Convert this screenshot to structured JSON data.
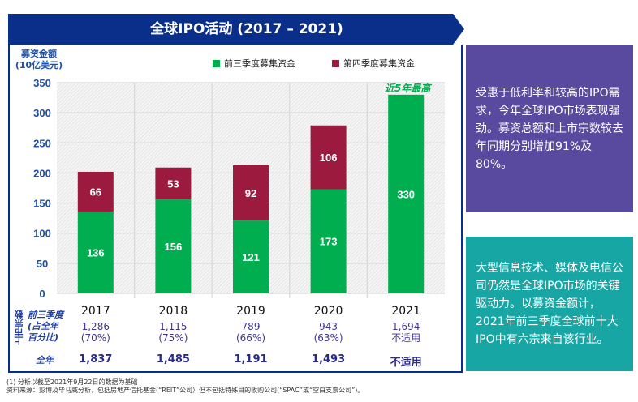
{
  "header": {
    "title": "全球IPO活动 (2017 – 2021)"
  },
  "chart_data": {
    "type": "bar",
    "stacked": true,
    "title": "全球IPO活动 (2017 – 2021)",
    "ylabel": "募资金额 (10亿美元)",
    "xlabel": "",
    "ylim": [
      0,
      350
    ],
    "yticks": [
      0,
      50,
      100,
      150,
      200,
      250,
      300,
      350
    ],
    "grid": true,
    "legend_position": "top",
    "categories": [
      "2017",
      "2018",
      "2019",
      "2020",
      "2021"
    ],
    "series": [
      {
        "name": "前三季度募集资金",
        "color": "#00ad4f",
        "values": [
          136,
          156,
          121,
          173,
          330
        ]
      },
      {
        "name": "第四季度募集资金",
        "color": "#9b1a3e",
        "values": [
          66,
          53,
          92,
          106,
          null
        ]
      }
    ],
    "annotations": [
      {
        "category": "2021",
        "text": "近5年最高",
        "color": "#00ad4f"
      }
    ]
  },
  "table": {
    "group_label": "上市宗数",
    "row1_label": "前三季度 (占全年百分比)",
    "row1_label_lines": [
      "前三季度",
      "(占全年",
      "百分比)"
    ],
    "row2_label": "全年",
    "years": [
      "2017",
      "2018",
      "2019",
      "2020",
      "2021"
    ],
    "ipo_counts": [
      {
        "count": "1,286",
        "pct": "(70%)",
        "full": "1,837"
      },
      {
        "count": "1,115",
        "pct": "(75%)",
        "full": "1,485"
      },
      {
        "count": "789",
        "pct": "(66%)",
        "full": "1,191"
      },
      {
        "count": "943",
        "pct": "(63%)",
        "full": "1,493"
      },
      {
        "count": "1,694",
        "pct": "不适用",
        "full": "不适用"
      }
    ]
  },
  "panels": [
    {
      "text": "受惠于低利率和较高的IPO需求，今年全球IPO市场表现强劲。募资总额和上市宗数较去年同期分别增加91%及80%。",
      "color": "#5a4a9f"
    },
    {
      "text": "大型信息技术、媒体及电信公司仍然是全球IPO市场的关键驱动力。以募资金额计，2021年前三季度全球前十大IPO中有六宗来自该行业。",
      "color": "#17a6a4"
    }
  ],
  "footnotes": [
    "(1) 分析以截至2021年9月22日的数据为基础",
    "资料来源：彭博及毕马威分析，包括房地产信托基金(“REIT”公司）但不包括特殊目的收购公司(“SPAC”或“空白支票公司”)。"
  ]
}
